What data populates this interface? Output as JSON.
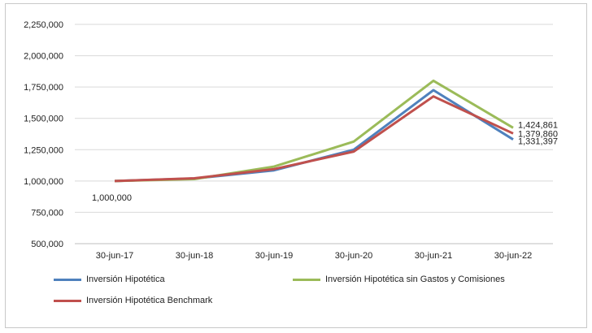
{
  "chart_data": {
    "type": "line",
    "title": "",
    "xlabel": "",
    "ylabel": "",
    "categories": [
      "30-jun-17",
      "30-jun-18",
      "30-jun-19",
      "30-jun-20",
      "30-jun-21",
      "30-jun-22"
    ],
    "ylim": [
      500000,
      2250000
    ],
    "yticks": [
      500000,
      750000,
      1000000,
      1250000,
      1500000,
      1750000,
      2000000,
      2250000
    ],
    "ytick_labels": [
      "500,000",
      "750,000",
      "1,000,000",
      "1,250,000",
      "1,500,000",
      "1,750,000",
      "2,000,000",
      "2,250,000"
    ],
    "grid": true,
    "legend_position": "bottom",
    "series": [
      {
        "name": "Inversión Hipotética",
        "color": "#4f81bd",
        "values": [
          1000000,
          1020000,
          1085000,
          1250000,
          1725000,
          1331397
        ]
      },
      {
        "name": "Inversión Hipotética sin Gastos y Comisiones",
        "color": "#9bbb59",
        "values": [
          1000000,
          1015000,
          1115000,
          1315000,
          1800000,
          1424861
        ]
      },
      {
        "name": "Inversión Hipotética Benchmark",
        "color": "#c0504d",
        "values": [
          1000000,
          1022000,
          1095000,
          1235000,
          1675000,
          1379860
        ]
      }
    ],
    "annotations": [
      {
        "text": "1,000,000",
        "x": "30-jun-17",
        "y": 1000000
      },
      {
        "text": "1,424,861",
        "x": "30-jun-22",
        "y": 1424861
      },
      {
        "text": "1,379,860",
        "x": "30-jun-22",
        "y": 1379860
      },
      {
        "text": "1,331,397",
        "x": "30-jun-22",
        "y": 1331397
      }
    ]
  }
}
